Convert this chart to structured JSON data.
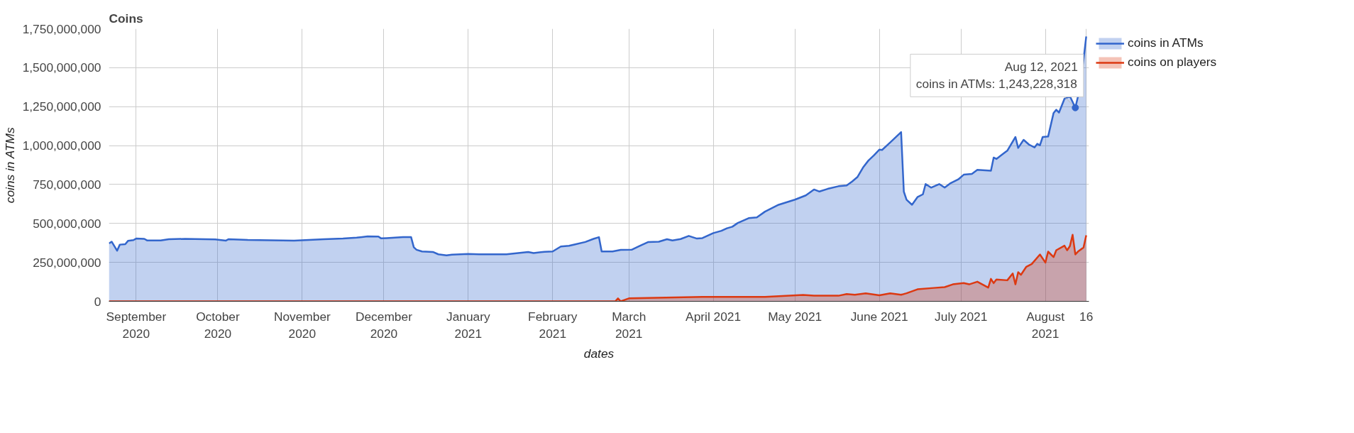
{
  "chart_data": {
    "type": "area",
    "title": "Coins",
    "xlabel": "dates",
    "ylabel": "coins in ATMs",
    "xlim": [
      "2020-08-22",
      "2021-08-17"
    ],
    "xticks": [
      {
        "value": "2020-09-01",
        "label": "September\n2020"
      },
      {
        "value": "2020-10-01",
        "label": "October\n2020"
      },
      {
        "value": "2020-11-01",
        "label": "November\n2020"
      },
      {
        "value": "2020-12-01",
        "label": "December\n2020"
      },
      {
        "value": "2021-01-01",
        "label": "January\n2021"
      },
      {
        "value": "2021-02-01",
        "label": "February\n2021"
      },
      {
        "value": "2021-03-01",
        "label": "March\n2021"
      },
      {
        "value": "2021-04-01",
        "label": "April 2021"
      },
      {
        "value": "2021-05-01",
        "label": "May 2021"
      },
      {
        "value": "2021-06-01",
        "label": "June 2021"
      },
      {
        "value": "2021-07-01",
        "label": "July 2021"
      },
      {
        "value": "2021-08-01",
        "label": "August\n2021"
      },
      {
        "value": "2021-08-16",
        "label": "16"
      }
    ],
    "ylim": [
      0,
      1750000000
    ],
    "yticks": [
      {
        "value": 0,
        "label": "0"
      },
      {
        "value": 250000000,
        "label": "250,000,000"
      },
      {
        "value": 500000000,
        "label": "500,000,000"
      },
      {
        "value": 750000000,
        "label": "750,000,000"
      },
      {
        "value": 1000000000,
        "label": "1,000,000,000"
      },
      {
        "value": 1250000000,
        "label": "1,250,000,000"
      },
      {
        "value": 1500000000,
        "label": "1,500,000,000"
      },
      {
        "value": 1750000000,
        "label": "1,750,000,000"
      }
    ],
    "grid": true,
    "legend": "right",
    "series": [
      {
        "name": "coins in ATMs",
        "color": "#3366cc",
        "x": [
          "2020-08-22",
          "2020-08-23",
          "2020-08-25",
          "2020-08-26",
          "2020-08-28",
          "2020-08-29",
          "2020-08-31",
          "2020-09-01",
          "2020-09-04",
          "2020-09-05",
          "2020-09-10",
          "2020-09-13",
          "2020-09-19",
          "2020-09-30",
          "2020-10-04",
          "2020-10-05",
          "2020-10-12",
          "2020-10-29",
          "2020-11-09",
          "2020-11-16",
          "2020-11-21",
          "2020-11-25",
          "2020-11-29",
          "2020-11-30",
          "2020-12-02",
          "2020-12-08",
          "2020-12-11",
          "2020-12-12",
          "2020-12-13",
          "2020-12-15",
          "2020-12-19",
          "2020-12-21",
          "2020-12-24",
          "2020-12-26",
          "2021-01-01",
          "2021-01-05",
          "2021-01-15",
          "2021-01-23",
          "2021-01-25",
          "2021-01-29",
          "2021-02-01",
          "2021-02-04",
          "2021-02-07",
          "2021-02-09",
          "2021-02-13",
          "2021-02-16",
          "2021-02-18",
          "2021-02-19",
          "2021-02-23",
          "2021-02-26",
          "2021-03-02",
          "2021-03-05",
          "2021-03-08",
          "2021-03-12",
          "2021-03-15",
          "2021-03-17",
          "2021-03-20",
          "2021-03-23",
          "2021-03-26",
          "2021-03-28",
          "2021-04-01",
          "2021-04-04",
          "2021-04-06",
          "2021-04-08",
          "2021-04-10",
          "2021-04-14",
          "2021-04-17",
          "2021-04-20",
          "2021-04-25",
          "2021-05-01",
          "2021-05-05",
          "2021-05-08",
          "2021-05-10",
          "2021-05-13",
          "2021-05-17",
          "2021-05-20",
          "2021-05-22",
          "2021-05-24",
          "2021-05-26",
          "2021-05-28",
          "2021-05-30",
          "2021-06-01",
          "2021-06-02",
          "2021-06-05",
          "2021-06-09",
          "2021-06-10",
          "2021-06-11",
          "2021-06-13",
          "2021-06-15",
          "2021-06-17",
          "2021-06-18",
          "2021-06-20",
          "2021-06-23",
          "2021-06-25",
          "2021-06-27",
          "2021-06-30",
          "2021-07-02",
          "2021-07-05",
          "2021-07-07",
          "2021-07-12",
          "2021-07-13",
          "2021-07-14",
          "2021-07-16",
          "2021-07-18",
          "2021-07-21",
          "2021-07-22",
          "2021-07-24",
          "2021-07-26",
          "2021-07-28",
          "2021-07-29",
          "2021-07-30",
          "2021-07-31",
          "2021-08-02",
          "2021-08-03",
          "2021-08-04",
          "2021-08-05",
          "2021-08-06",
          "2021-08-08",
          "2021-08-10",
          "2021-08-12",
          "2021-08-13",
          "2021-08-15",
          "2021-08-16"
        ],
        "values": [
          372000000,
          383000000,
          325000000,
          364000000,
          367000000,
          388000000,
          393000000,
          403000000,
          401000000,
          391000000,
          391000000,
          399000000,
          401000000,
          398000000,
          390000000,
          399000000,
          394000000,
          390000000,
          399000000,
          403000000,
          409000000,
          417000000,
          416000000,
          404000000,
          406000000,
          412000000,
          412000000,
          347000000,
          331000000,
          320000000,
          317000000,
          302000000,
          295000000,
          300000000,
          304000000,
          302000000,
          302000000,
          317000000,
          310000000,
          318000000,
          320000000,
          352000000,
          357000000,
          365000000,
          381000000,
          401000000,
          412000000,
          320000000,
          320000000,
          330000000,
          331000000,
          356000000,
          380000000,
          383000000,
          399000000,
          391000000,
          400000000,
          420000000,
          403000000,
          406000000,
          438000000,
          453000000,
          469000000,
          479000000,
          503000000,
          534000000,
          539000000,
          576000000,
          620000000,
          653000000,
          680000000,
          718000000,
          705000000,
          722000000,
          739000000,
          744000000,
          769000000,
          799000000,
          859000000,
          904000000,
          937000000,
          974000000,
          972000000,
          1020000000,
          1086000000,
          704000000,
          652000000,
          620000000,
          669000000,
          687000000,
          753000000,
          730000000,
          753000000,
          730000000,
          757000000,
          783000000,
          813000000,
          818000000,
          844000000,
          839000000,
          923000000,
          914000000,
          941000000,
          967000000,
          1055000000,
          985000000,
          1037000000,
          1006000000,
          988000000,
          1011000000,
          1002000000,
          1055000000,
          1058000000,
          1133000000,
          1209000000,
          1230000000,
          1212000000,
          1300000000,
          1317000000,
          1243228318,
          1317000000,
          1550000000,
          1700000000
        ]
      },
      {
        "name": "coins on players",
        "color": "#dc3912",
        "x": [
          "2020-08-22",
          "2021-02-24",
          "2021-02-25",
          "2021-02-26",
          "2021-03-01",
          "2021-03-28",
          "2021-04-20",
          "2021-05-04",
          "2021-05-08",
          "2021-05-17",
          "2021-05-20",
          "2021-05-23",
          "2021-05-27",
          "2021-06-01",
          "2021-06-05",
          "2021-06-09",
          "2021-06-11",
          "2021-06-15",
          "2021-06-21",
          "2021-06-25",
          "2021-06-28",
          "2021-07-02",
          "2021-07-04",
          "2021-07-07",
          "2021-07-11",
          "2021-07-12",
          "2021-07-13",
          "2021-07-14",
          "2021-07-18",
          "2021-07-20",
          "2021-07-21",
          "2021-07-22",
          "2021-07-23",
          "2021-07-25",
          "2021-07-27",
          "2021-07-30",
          "2021-08-01",
          "2021-08-02",
          "2021-08-04",
          "2021-08-05",
          "2021-08-08",
          "2021-08-09",
          "2021-08-10",
          "2021-08-11",
          "2021-08-12",
          "2021-08-13",
          "2021-08-15",
          "2021-08-16"
        ],
        "values": [
          0,
          0,
          19000000,
          0,
          19000000,
          28000000,
          29000000,
          41000000,
          36000000,
          36000000,
          47000000,
          42000000,
          51000000,
          39000000,
          51000000,
          42000000,
          52000000,
          77000000,
          86000000,
          91000000,
          109000000,
          117000000,
          109000000,
          126000000,
          88000000,
          144000000,
          117000000,
          140000000,
          135000000,
          179000000,
          109000000,
          187000000,
          170000000,
          222000000,
          240000000,
          301000000,
          249000000,
          319000000,
          284000000,
          328000000,
          357000000,
          328000000,
          354000000,
          427000000,
          301000000,
          320000000,
          345000000,
          424000000
        ]
      }
    ],
    "annotations": [
      {
        "text": "Aug 12, 2021\ncoins in ATMs: 1,243,228,318",
        "x": "2021-08-12",
        "y": 1243228318
      }
    ]
  }
}
